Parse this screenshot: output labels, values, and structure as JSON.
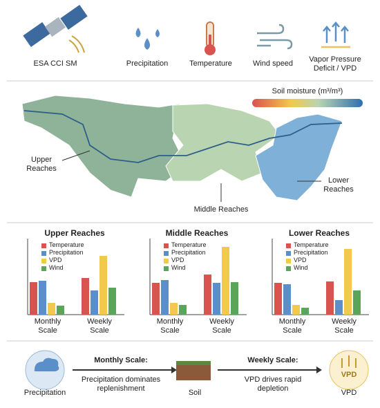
{
  "icons": [
    {
      "label": "ESA CCI SM"
    },
    {
      "label": "Precipitation"
    },
    {
      "label": "Temperature"
    },
    {
      "label": "Wind speed"
    },
    {
      "label": "Vapor Pressure Deficit / VPD"
    }
  ],
  "map": {
    "legend_title": "Soil moisture (m³/m³)",
    "upper_label": "Upper Reaches",
    "middle_label": "Middle Reaches",
    "lower_label": "Lower Reaches"
  },
  "chart_data": [
    {
      "type": "bar",
      "title": "Upper Reaches",
      "categories": [
        "Monthly Scale",
        "Weekly Scale"
      ],
      "ylim": [
        0,
        100
      ],
      "series": [
        {
          "name": "Temperature",
          "color": "#d9534f",
          "values": [
            47,
            53
          ]
        },
        {
          "name": "Precipitation",
          "color": "#5b8fc9",
          "values": [
            49,
            35
          ]
        },
        {
          "name": "VPD",
          "color": "#f2c94c",
          "values": [
            17,
            85
          ]
        },
        {
          "name": "Wind",
          "color": "#5aa55a",
          "values": [
            13,
            39
          ]
        }
      ]
    },
    {
      "type": "bar",
      "title": "Middle Reaches",
      "categories": [
        "Monthly Scale",
        "Weekly Scale"
      ],
      "ylim": [
        0,
        100
      ],
      "series": [
        {
          "name": "Temperature",
          "color": "#d9534f",
          "values": [
            46,
            58
          ]
        },
        {
          "name": "Precipitation",
          "color": "#5b8fc9",
          "values": [
            50,
            46
          ]
        },
        {
          "name": "VPD",
          "color": "#f2c94c",
          "values": [
            17,
            98
          ]
        },
        {
          "name": "Wind",
          "color": "#5aa55a",
          "values": [
            14,
            47
          ]
        }
      ]
    },
    {
      "type": "bar",
      "title": "Lower Reaches",
      "categories": [
        "Monthly Scale",
        "Weekly Scale"
      ],
      "ylim": [
        0,
        100
      ],
      "series": [
        {
          "name": "Temperature",
          "color": "#d9534f",
          "values": [
            46,
            48
          ]
        },
        {
          "name": "Precipitation",
          "color": "#5b8fc9",
          "values": [
            44,
            21
          ]
        },
        {
          "name": "VPD",
          "color": "#f2c94c",
          "values": [
            14,
            95
          ]
        },
        {
          "name": "Wind",
          "color": "#5aa55a",
          "values": [
            10,
            35
          ]
        }
      ]
    }
  ],
  "flow": {
    "source": "Precipitation",
    "monthly_title": "Monthly Scale:",
    "monthly_text": "Precipitation dominates replenishment",
    "soil": "Soil",
    "weekly_title": "Weekly Scale:",
    "weekly_text": "VPD drives rapid depletion",
    "vpd_badge": "VPD",
    "vpd_label": "VPD"
  }
}
